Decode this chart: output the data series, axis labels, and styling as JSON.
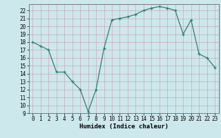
{
  "xlabel": "Humidex (Indice chaleur)",
  "x": [
    0,
    1,
    2,
    3,
    4,
    5,
    6,
    7,
    8,
    9,
    10,
    11,
    12,
    13,
    14,
    15,
    16,
    17,
    18,
    19,
    20,
    21,
    22,
    23
  ],
  "y": [
    18,
    17.5,
    17,
    14.2,
    14.2,
    13,
    12,
    9.2,
    12,
    17.2,
    20.8,
    21,
    21.2,
    21.5,
    22,
    22.3,
    22.5,
    22.3,
    22,
    19,
    20.8,
    16.5,
    16,
    14.8
  ],
  "line_color": "#2e7d6e",
  "marker": "+",
  "bg_color": "#cde8ec",
  "grid_color": "#b0cdd0",
  "xlim": [
    -0.5,
    23.5
  ],
  "ylim": [
    9,
    22.8
  ],
  "yticks": [
    9,
    10,
    11,
    12,
    13,
    14,
    15,
    16,
    17,
    18,
    19,
    20,
    21,
    22
  ],
  "xticks": [
    0,
    1,
    2,
    3,
    4,
    5,
    6,
    7,
    8,
    9,
    10,
    11,
    12,
    13,
    14,
    15,
    16,
    17,
    18,
    19,
    20,
    21,
    22,
    23
  ],
  "tick_fontsize": 5.5,
  "xlabel_fontsize": 6.5
}
